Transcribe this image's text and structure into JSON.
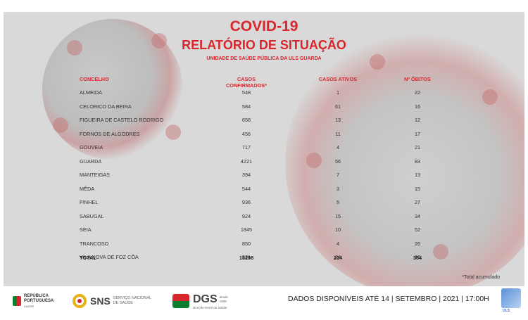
{
  "report": {
    "title": "COVID-19",
    "subtitle": "RELATÓRIO DE SITUAÇÃO",
    "unit": "UNIDADE DE SAÚDE PÚBLICA DA ULS GUARDA"
  },
  "table": {
    "headers": [
      "CONCELHO",
      "CASOS CONFIRMADOS*",
      "CASOS ATIVOS",
      "Nº ÓBITOS"
    ],
    "rows": [
      {
        "concelho": "ALMEIDA",
        "confirmados": "548",
        "ativos": "1",
        "obitos": "22"
      },
      {
        "concelho": "CELORICO DA BEIRA",
        "confirmados": "584",
        "ativos": "61",
        "obitos": "16"
      },
      {
        "concelho": "FIGUEIRA DE CASTELO RODRIGO",
        "confirmados": "658",
        "ativos": "13",
        "obitos": "12"
      },
      {
        "concelho": "FORNOS DE ALGODRES",
        "confirmados": "456",
        "ativos": "11",
        "obitos": "17"
      },
      {
        "concelho": "GOUVEIA",
        "confirmados": "717",
        "ativos": "4",
        "obitos": "21"
      },
      {
        "concelho": "GUARDA",
        "confirmados": "4221",
        "ativos": "56",
        "obitos": "83"
      },
      {
        "concelho": "MANTEIGAS",
        "confirmados": "394",
        "ativos": "7",
        "obitos": "13"
      },
      {
        "concelho": "MÊDA",
        "confirmados": "544",
        "ativos": "3",
        "obitos": "15"
      },
      {
        "concelho": "PINHEL",
        "confirmados": "936",
        "ativos": "5",
        "obitos": "27"
      },
      {
        "concelho": "SABUGAL",
        "confirmados": "924",
        "ativos": "15",
        "obitos": "34"
      },
      {
        "concelho": "SEIA",
        "confirmados": "1845",
        "ativos": "10",
        "obitos": "52"
      },
      {
        "concelho": "TRANCOSO",
        "confirmados": "850",
        "ativos": "4",
        "obitos": "26"
      },
      {
        "concelho": "VILA NOVA DE FOZ CÔA",
        "confirmados": "621",
        "ativos": "24",
        "obitos": "16"
      }
    ],
    "total": {
      "label": "TOTAL",
      "confirmados": "13298",
      "ativos": "214",
      "obitos": "354"
    }
  },
  "note": "*Total acumulado",
  "footer": {
    "republica": [
      "REPÚBLICA",
      "PORTUGUESA",
      "SAÚDE"
    ],
    "sns_short": "SNS",
    "sns_long": [
      "SERVIÇO NACIONAL",
      "DE SAÚDE"
    ],
    "dgs_short": "DGS",
    "dgs_since": [
      "desde",
      "1899"
    ],
    "dgs_long": "Direção-Geral da Saúde",
    "data_line": "DADOS DISPONÍVEIS ATÉ 14 | SETEMBRO | 2021 | 17:00H",
    "uls_label": "ULS"
  },
  "colors": {
    "accent": "#d8262d",
    "panel": "#d9d9d9"
  }
}
